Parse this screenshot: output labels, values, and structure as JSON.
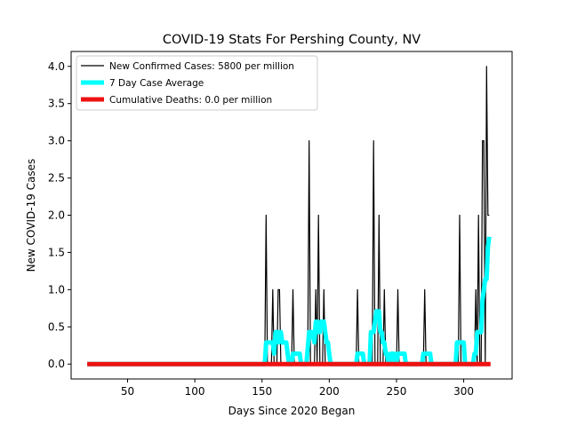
{
  "chart_data": {
    "type": "line",
    "title": "COVID-19 Stats For Pershing County, NV",
    "xlabel": "Days Since 2020 Began",
    "ylabel": "New COVID-19 Cases",
    "xlim": [
      8,
      336
    ],
    "ylim": [
      -0.2,
      4.2
    ],
    "xticks": [
      50,
      100,
      150,
      200,
      250,
      300
    ],
    "yticks": [
      0.0,
      0.5,
      1.0,
      1.5,
      2.0,
      2.5,
      3.0,
      3.5,
      4.0
    ],
    "ytick_labels": [
      "0.0",
      "0.5",
      "1.0",
      "1.5",
      "2.0",
      "2.5",
      "3.0",
      "3.5",
      "4.0"
    ],
    "grid": false,
    "legend_position": "top-left",
    "series": [
      {
        "name": "New Confirmed Cases: 5800 per million",
        "color": "#000000",
        "x": [
          20,
          152,
          153,
          154,
          155,
          157,
          158,
          159,
          161,
          162,
          163,
          164,
          172,
          173,
          174,
          184,
          185,
          186,
          189,
          190,
          191,
          192,
          193,
          195,
          196,
          197,
          220,
          221,
          222,
          232,
          233,
          234,
          235,
          236,
          237,
          238,
          240,
          241,
          242,
          250,
          251,
          252,
          270,
          271,
          272,
          296,
          297,
          298,
          308,
          309,
          310,
          311,
          312,
          313,
          314,
          315,
          316,
          317,
          318,
          319
        ],
        "y": [
          0,
          0,
          2,
          0,
          0,
          0,
          1,
          0,
          0,
          1,
          1,
          0,
          0,
          1,
          0,
          0,
          3,
          0,
          0,
          1,
          0,
          2,
          0,
          0,
          1,
          0,
          0,
          1,
          0,
          0,
          3,
          0,
          0,
          0,
          2,
          0,
          0,
          1,
          0,
          0,
          1,
          0,
          0,
          1,
          0,
          0,
          2,
          0,
          0,
          1,
          0,
          2,
          0,
          0,
          3,
          3,
          0,
          4,
          2,
          2
        ]
      },
      {
        "name": "7 Day Case Average",
        "color": "#00ffff",
        "x": [
          20,
          152,
          153,
          154,
          158,
          159,
          160,
          161,
          162,
          163,
          164,
          165,
          168,
          169,
          170,
          172,
          173,
          178,
          179,
          180,
          181,
          183,
          185,
          186,
          187,
          189,
          190,
          191,
          192,
          193,
          194,
          196,
          197,
          198,
          199,
          200,
          201,
          202,
          204,
          218,
          220,
          221,
          225,
          226,
          227,
          230,
          231,
          232,
          233,
          234,
          235,
          236,
          237,
          238,
          239,
          240,
          241,
          242,
          243,
          244,
          245,
          246,
          248,
          249,
          250,
          251,
          256,
          257,
          258,
          268,
          269,
          270,
          275,
          276,
          277,
          294,
          295,
          296,
          300,
          301,
          302,
          306,
          307,
          308,
          309,
          310,
          312,
          313,
          314,
          316,
          317,
          318,
          319
        ],
        "y": [
          0,
          0,
          0.29,
          0.29,
          0.29,
          0.14,
          0.43,
          0.43,
          0.29,
          0.43,
          0.43,
          0.29,
          0.29,
          0.14,
          0,
          0,
          0.14,
          0.14,
          0,
          0,
          0,
          0,
          0.43,
          0.43,
          0.43,
          0.29,
          0.57,
          0.57,
          0.43,
          0.43,
          0.57,
          0.57,
          0.43,
          0.29,
          0.29,
          0.14,
          0,
          0,
          0,
          0,
          0,
          0.14,
          0.14,
          0,
          0,
          0,
          0.43,
          0.43,
          0.43,
          0.57,
          0.71,
          0.71,
          0.71,
          0.43,
          0.43,
          0.29,
          0.29,
          0.14,
          0.14,
          0,
          0,
          0.14,
          0.14,
          0,
          0,
          0.14,
          0.14,
          0,
          0,
          0,
          0,
          0.14,
          0.14,
          0,
          0,
          0,
          0.29,
          0.29,
          0.29,
          0,
          0,
          0,
          0,
          0.14,
          0.14,
          0.43,
          0.43,
          0.43,
          0.86,
          1.14,
          1.14,
          1.57,
          1.71
        ]
      },
      {
        "name": "Cumulative Deaths: 0.0 per million",
        "color": "#ee1111",
        "x": [
          20,
          320
        ],
        "y": [
          0,
          0
        ]
      }
    ]
  }
}
